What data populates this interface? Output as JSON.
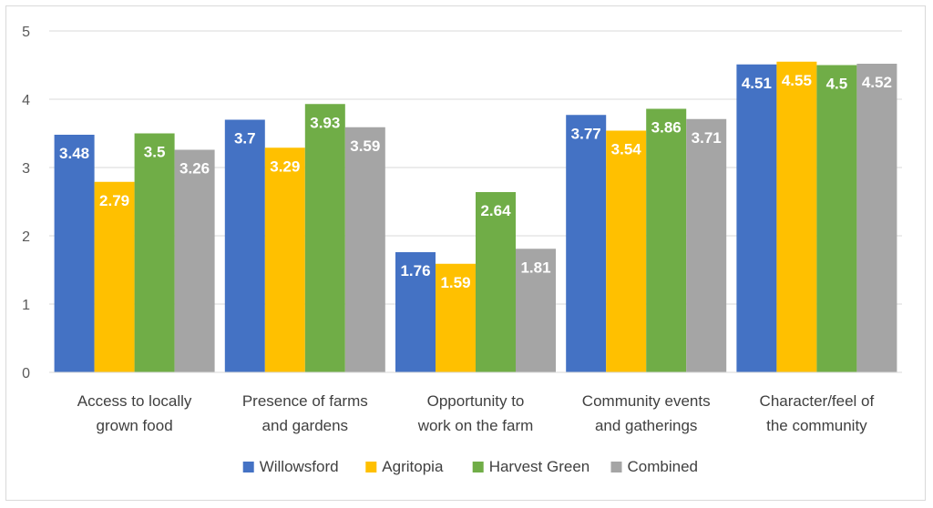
{
  "chart_data": {
    "type": "bar",
    "categories": [
      [
        "Access to locally",
        "grown food"
      ],
      [
        "Presence of farms",
        "and gardens"
      ],
      [
        "Opportunity to",
        "work on the farm"
      ],
      [
        "Community events",
        "and gatherings"
      ],
      [
        "Character/feel of",
        "the community"
      ]
    ],
    "series": [
      {
        "name": "Willowsford",
        "color": "#4472C4",
        "values": [
          3.48,
          3.7,
          1.76,
          3.77,
          4.51
        ]
      },
      {
        "name": "Agritopia",
        "color": "#FFC000",
        "values": [
          2.79,
          3.29,
          1.59,
          3.54,
          4.55
        ]
      },
      {
        "name": "Harvest Green",
        "color": "#70AD47",
        "values": [
          3.5,
          3.93,
          2.64,
          3.86,
          4.5
        ]
      },
      {
        "name": "Combined",
        "color": "#A5A5A5",
        "values": [
          3.26,
          3.59,
          1.81,
          3.71,
          4.52
        ]
      }
    ],
    "yticks": [
      "0",
      "1",
      "2",
      "3",
      "4",
      "5"
    ],
    "ylim": [
      0,
      5
    ],
    "grid": true,
    "legend_position": "bottom"
  }
}
